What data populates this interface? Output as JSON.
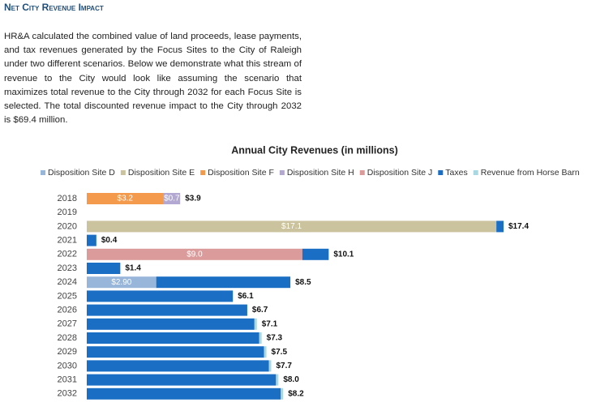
{
  "title": "Net City Revenue Impact",
  "paragraph": "HR&A calculated the combined value of land proceeds, lease payments, and tax revenues generated by the Focus Sites to the City of Raleigh under two different scenarios. Below we demonstrate what this stream of revenue to the City would look like assuming the scenario that maximizes total revenue to the City through 2032 for each Focus Site is selected. The total discounted revenue impact to the City through 2032 is $69.4 million.",
  "chart_data": {
    "type": "bar",
    "orientation": "horizontal",
    "stacked": true,
    "title": "Annual City Revenues (in millions)",
    "categories": [
      "2018",
      "2019",
      "2020",
      "2021",
      "2022",
      "2023",
      "2024",
      "2025",
      "2026",
      "2027",
      "2028",
      "2029",
      "2030",
      "2031",
      "2032"
    ],
    "series": [
      {
        "name": "Disposition Site D",
        "color": "#97b6da",
        "values": [
          null,
          null,
          null,
          null,
          null,
          null,
          2.9,
          null,
          null,
          null,
          null,
          null,
          null,
          null,
          null
        ],
        "value_labels": [
          null,
          null,
          null,
          null,
          null,
          null,
          "$2.90",
          null,
          null,
          null,
          null,
          null,
          null,
          null,
          null
        ]
      },
      {
        "name": "Disposition Site E",
        "color": "#cbc39d",
        "values": [
          null,
          null,
          17.1,
          null,
          null,
          null,
          null,
          null,
          null,
          null,
          null,
          null,
          null,
          null,
          null
        ],
        "value_labels": [
          null,
          null,
          "$17.1",
          null,
          null,
          null,
          null,
          null,
          null,
          null,
          null,
          null,
          null,
          null,
          null
        ]
      },
      {
        "name": "Disposition Site F",
        "color": "#f39a4c",
        "values": [
          3.2,
          null,
          null,
          null,
          null,
          null,
          null,
          null,
          null,
          null,
          null,
          null,
          null,
          null,
          null
        ],
        "value_labels": [
          "$3.2",
          null,
          null,
          null,
          null,
          null,
          null,
          null,
          null,
          null,
          null,
          null,
          null,
          null,
          null
        ]
      },
      {
        "name": "Disposition Site H",
        "color": "#b3a8d2",
        "values": [
          0.7,
          null,
          null,
          null,
          null,
          null,
          null,
          null,
          null,
          null,
          null,
          null,
          null,
          null,
          null
        ],
        "value_labels": [
          "$0.7",
          null,
          null,
          null,
          null,
          null,
          null,
          null,
          null,
          null,
          null,
          null,
          null,
          null,
          null
        ]
      },
      {
        "name": "Disposition Site J",
        "color": "#dc9b9b",
        "values": [
          null,
          null,
          null,
          null,
          9.0,
          null,
          null,
          null,
          null,
          null,
          null,
          null,
          null,
          null,
          null
        ],
        "value_labels": [
          null,
          null,
          null,
          null,
          "$9.0",
          null,
          null,
          null,
          null,
          null,
          null,
          null,
          null,
          null,
          null
        ]
      },
      {
        "name": "Taxes",
        "color": "#1a6ec3",
        "values": [
          null,
          null,
          0.3,
          0.4,
          1.1,
          1.4,
          5.6,
          6.1,
          6.7,
          7.0,
          7.2,
          7.4,
          7.6,
          7.9,
          8.1
        ]
      },
      {
        "name": "Revenue from Horse Barn",
        "color": "#a9d7e2",
        "values": [
          null,
          null,
          null,
          null,
          null,
          null,
          null,
          null,
          null,
          0.1,
          0.1,
          0.1,
          0.1,
          0.1,
          0.1
        ]
      }
    ],
    "totals": [
      3.9,
      null,
      17.4,
      0.4,
      10.1,
      1.4,
      8.5,
      6.1,
      6.7,
      7.1,
      7.3,
      7.5,
      7.7,
      8.0,
      8.2
    ],
    "total_labels": [
      "$3.9",
      null,
      "$17.4",
      "$0.4",
      "$10.1",
      "$1.4",
      "$8.5",
      "$6.1",
      "$6.7",
      "$7.1",
      "$7.3",
      "$7.5",
      "$7.7",
      "$8.0",
      "$8.2"
    ]
  }
}
